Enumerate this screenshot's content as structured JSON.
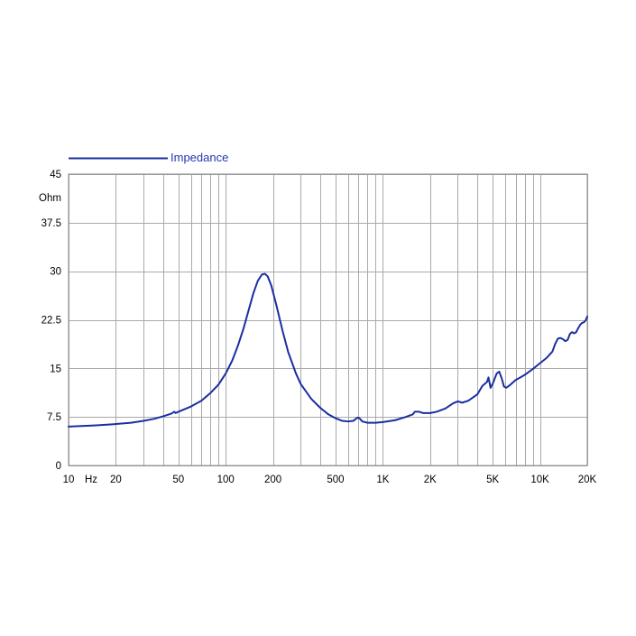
{
  "chart_data": {
    "type": "line",
    "title": "",
    "xlabel": "",
    "ylabel": "Ohm",
    "x_unit_label": "Hz",
    "x_scale": "log",
    "xlim": [
      10,
      20000
    ],
    "ylim": [
      0,
      45
    ],
    "grid": true,
    "legend_position": "top-left",
    "line_color": "#1a2fa0",
    "legend_text_color": "#2436b4",
    "y_ticks": [
      {
        "value": 0,
        "label": "0"
      },
      {
        "value": 7.5,
        "label": "7.5"
      },
      {
        "value": 15,
        "label": "15"
      },
      {
        "value": 22.5,
        "label": "22.5"
      },
      {
        "value": 30,
        "label": "30"
      },
      {
        "value": 37.5,
        "label": "37.5"
      },
      {
        "value": 45,
        "label": "45"
      }
    ],
    "x_gridlines": [
      10,
      20,
      30,
      40,
      50,
      60,
      70,
      80,
      90,
      100,
      200,
      300,
      400,
      500,
      600,
      700,
      800,
      900,
      1000,
      2000,
      3000,
      4000,
      5000,
      6000,
      7000,
      8000,
      9000,
      10000,
      20000
    ],
    "x_ticks": [
      {
        "value": 10,
        "label": "10"
      },
      {
        "value": 20,
        "label": "20"
      },
      {
        "value": 50,
        "label": "50"
      },
      {
        "value": 100,
        "label": "100"
      },
      {
        "value": 200,
        "label": "200"
      },
      {
        "value": 500,
        "label": "500"
      },
      {
        "value": 1000,
        "label": "1K"
      },
      {
        "value": 2000,
        "label": "2K"
      },
      {
        "value": 5000,
        "label": "5K"
      },
      {
        "value": 10000,
        "label": "10K"
      },
      {
        "value": 20000,
        "label": "20K"
      }
    ],
    "series": [
      {
        "name": "Impedance",
        "points": [
          [
            10,
            6.0
          ],
          [
            15,
            6.2
          ],
          [
            20,
            6.4
          ],
          [
            25,
            6.6
          ],
          [
            30,
            6.9
          ],
          [
            35,
            7.2
          ],
          [
            40,
            7.6
          ],
          [
            45,
            8.0
          ],
          [
            47,
            8.3
          ],
          [
            48,
            8.1
          ],
          [
            50,
            8.3
          ],
          [
            60,
            9.1
          ],
          [
            70,
            10.0
          ],
          [
            80,
            11.2
          ],
          [
            90,
            12.5
          ],
          [
            100,
            14.2
          ],
          [
            110,
            16.2
          ],
          [
            120,
            18.6
          ],
          [
            130,
            21.2
          ],
          [
            140,
            24.0
          ],
          [
            150,
            26.6
          ],
          [
            160,
            28.5
          ],
          [
            170,
            29.5
          ],
          [
            178,
            29.6
          ],
          [
            185,
            29.2
          ],
          [
            195,
            27.8
          ],
          [
            210,
            24.8
          ],
          [
            230,
            20.8
          ],
          [
            250,
            17.5
          ],
          [
            280,
            14.2
          ],
          [
            300,
            12.6
          ],
          [
            350,
            10.3
          ],
          [
            400,
            8.9
          ],
          [
            450,
            7.9
          ],
          [
            500,
            7.3
          ],
          [
            550,
            6.9
          ],
          [
            600,
            6.8
          ],
          [
            650,
            6.9
          ],
          [
            690,
            7.4
          ],
          [
            710,
            7.3
          ],
          [
            740,
            6.8
          ],
          [
            800,
            6.6
          ],
          [
            900,
            6.6
          ],
          [
            1000,
            6.7
          ],
          [
            1200,
            7.0
          ],
          [
            1400,
            7.5
          ],
          [
            1550,
            7.9
          ],
          [
            1600,
            8.3
          ],
          [
            1700,
            8.3
          ],
          [
            1800,
            8.1
          ],
          [
            2000,
            8.1
          ],
          [
            2200,
            8.3
          ],
          [
            2500,
            8.8
          ],
          [
            2800,
            9.6
          ],
          [
            3000,
            9.9
          ],
          [
            3200,
            9.7
          ],
          [
            3500,
            10.0
          ],
          [
            4000,
            11.0
          ],
          [
            4300,
            12.3
          ],
          [
            4600,
            12.9
          ],
          [
            4700,
            13.6
          ],
          [
            4850,
            12.0
          ],
          [
            5000,
            12.6
          ],
          [
            5300,
            14.2
          ],
          [
            5500,
            14.5
          ],
          [
            5700,
            13.5
          ],
          [
            5900,
            12.2
          ],
          [
            6100,
            12.0
          ],
          [
            6500,
            12.5
          ],
          [
            7000,
            13.2
          ],
          [
            7500,
            13.6
          ],
          [
            8000,
            14.0
          ],
          [
            9000,
            14.9
          ],
          [
            10000,
            15.8
          ],
          [
            11000,
            16.6
          ],
          [
            12000,
            17.6
          ],
          [
            12500,
            18.8
          ],
          [
            13000,
            19.6
          ],
          [
            13500,
            19.7
          ],
          [
            14000,
            19.5
          ],
          [
            14500,
            19.2
          ],
          [
            15000,
            19.4
          ],
          [
            15500,
            20.3
          ],
          [
            16000,
            20.6
          ],
          [
            16500,
            20.4
          ],
          [
            17000,
            20.6
          ],
          [
            17500,
            21.2
          ],
          [
            18000,
            21.7
          ],
          [
            18500,
            22.0
          ],
          [
            19000,
            22.1
          ],
          [
            19500,
            22.4
          ],
          [
            20000,
            23.0
          ]
        ]
      }
    ]
  }
}
